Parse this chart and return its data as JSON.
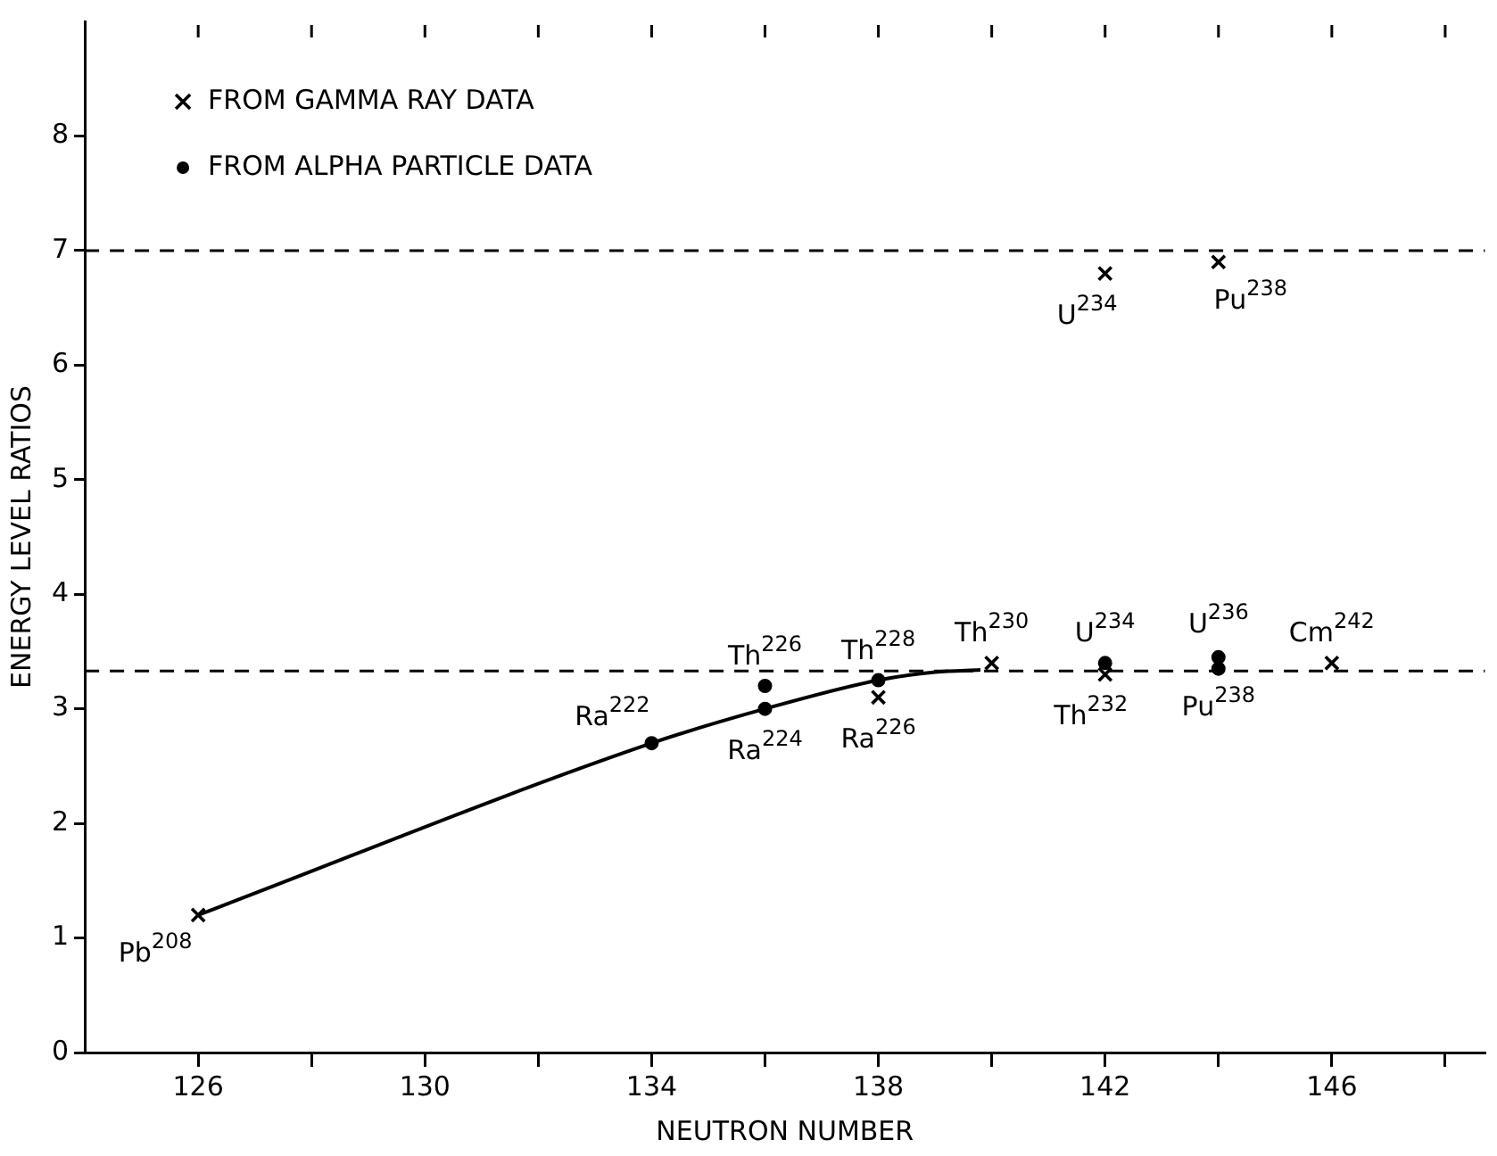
{
  "chart_data": {
    "type": "scatter",
    "xlabel": "NEUTRON NUMBER",
    "ylabel": "ENERGY LEVEL RATIOS",
    "xlim": [
      124,
      148.7
    ],
    "xticks": [
      126,
      {
        "value": 128,
        "label": null
      },
      130,
      {
        "value": 132,
        "label": null
      },
      134,
      {
        "value": 136,
        "label": null
      },
      138,
      {
        "value": 140,
        "label": null
      },
      142,
      {
        "value": 144,
        "label": null
      },
      146,
      {
        "value": 148,
        "label": null
      }
    ],
    "ylim": [
      0,
      9
    ],
    "yticks": [
      0,
      1,
      2,
      3,
      4,
      5,
      6,
      7,
      8
    ],
    "grid": false,
    "legend": "top left",
    "series": [
      {
        "name": "FROM GAMMA RAY DATA",
        "type": "scatter",
        "marker": "cross",
        "color": "#000000",
        "x": [
          126,
          138,
          140,
          142,
          146,
          142,
          144
        ],
        "values": [
          1.2,
          3.1,
          3.4,
          3.3,
          3.4,
          6.8,
          6.9
        ]
      },
      {
        "name": "FROM ALPHA PARTICLE DATA",
        "type": "scatter",
        "marker": "circle",
        "color": "#000000",
        "x": [
          134,
          136,
          136,
          138,
          142,
          144,
          144
        ],
        "values": [
          2.7,
          3.0,
          3.2,
          3.25,
          3.4,
          3.45,
          3.35
        ]
      },
      {
        "type": "line",
        "color": "#000000",
        "marker": "none",
        "line_style": "solid",
        "x": [
          126,
          134,
          136,
          138,
          139,
          139.8
        ],
        "values": [
          1.2,
          2.7,
          3.0,
          3.25,
          3.32,
          3.34
        ]
      }
    ],
    "ref_lines": [
      {
        "axis": "y",
        "value": 7,
        "line_style": "dashed"
      },
      {
        "axis": "y",
        "value": 3.33,
        "line_style": "dashed"
      }
    ],
    "annotations": [
      {
        "text": "Pb$^{208}$",
        "x": 126,
        "y": 1.2
      },
      {
        "text": "Ra$^{222}$",
        "x": 134,
        "y": 2.7
      },
      {
        "text": "Ra$^{224}$",
        "x": 136,
        "y": 3.0
      },
      {
        "text": "Th$^{226}$",
        "x": 136,
        "y": 3.2
      },
      {
        "text": "Th$^{228}$",
        "x": 138,
        "y": 3.25
      },
      {
        "text": "Ra$^{226}$",
        "x": 138,
        "y": 3.1
      },
      {
        "text": "Th$^{230}$",
        "x": 140,
        "y": 3.4
      },
      {
        "text": "U$^{234}$",
        "x": 142,
        "y": 3.4
      },
      {
        "text": "Th$^{232}$",
        "x": 142,
        "y": 3.3
      },
      {
        "text": "U$^{236}$",
        "x": 144,
        "y": 3.45
      },
      {
        "text": "Pu$^{238}$",
        "x": 144,
        "y": 3.35
      },
      {
        "text": "Cm$^{242}$",
        "x": 146,
        "y": 3.4
      },
      {
        "text": "U$^{234}$",
        "x": 142,
        "y": 6.8
      },
      {
        "text": "Pu$^{238}$",
        "x": 144,
        "y": 6.9
      }
    ]
  }
}
